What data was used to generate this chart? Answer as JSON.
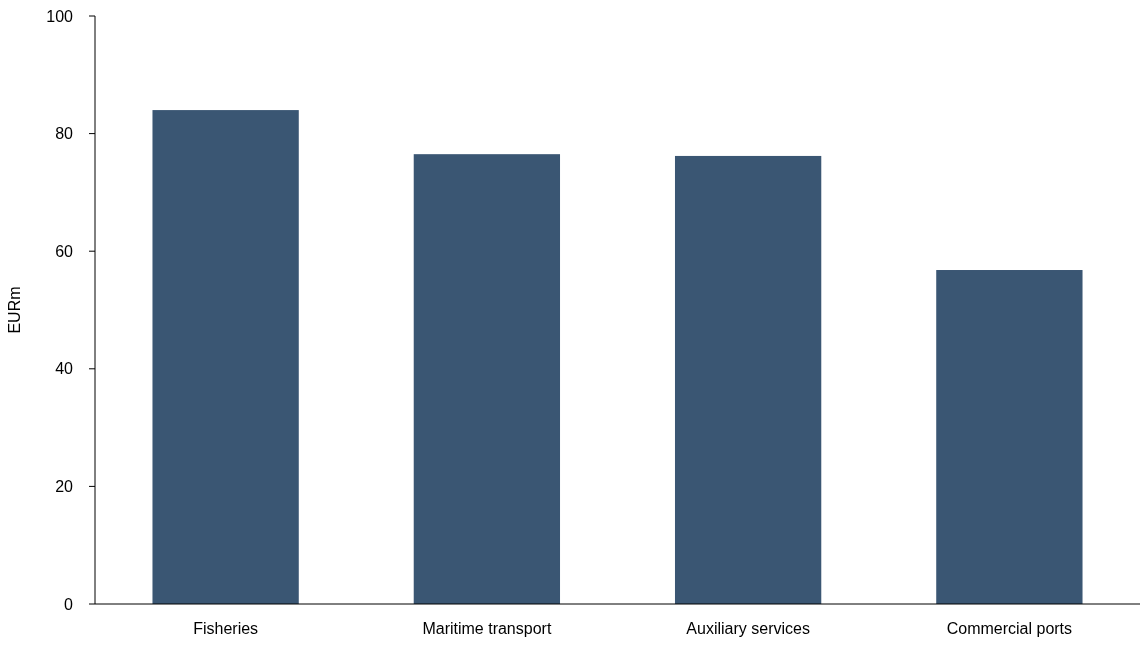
{
  "chart_data": {
    "type": "bar",
    "ylabel": "EURm",
    "categories": [
      "Fisheries",
      "Maritime transport",
      "Auxiliary services",
      "Commercial ports"
    ],
    "values": [
      84,
      76.5,
      76.2,
      56.8
    ],
    "color": "#3a5673",
    "ylim": [
      0,
      100
    ],
    "yticks": [
      0,
      20,
      40,
      60,
      80,
      100
    ],
    "grid": false
  }
}
